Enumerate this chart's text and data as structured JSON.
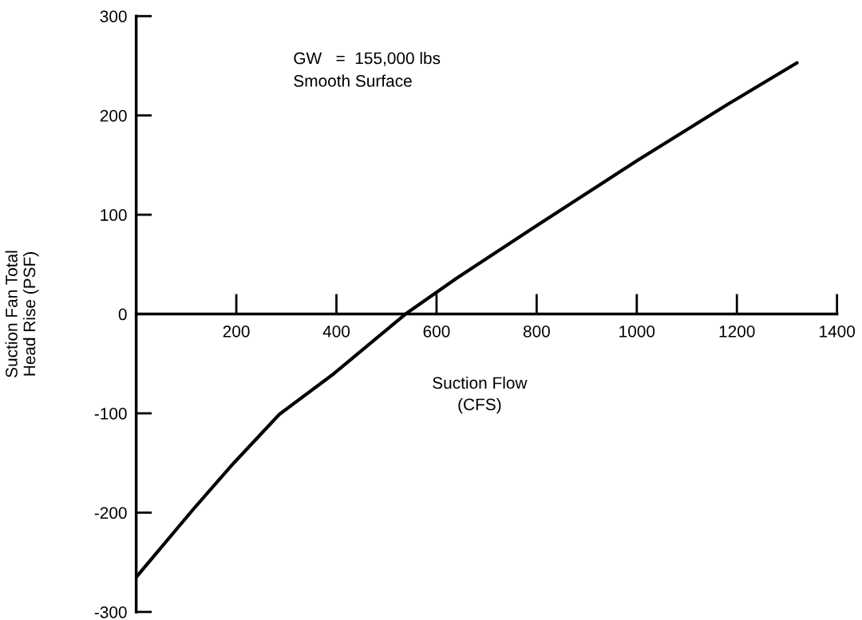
{
  "chart_data": {
    "type": "line",
    "xlabel": "Suction Flow\n(CFS)",
    "ylabel": "Suction Fan Total\nHead Rise (PSF)",
    "annotations": [
      "GW   =  155,000 lbs\nSmooth Surface"
    ],
    "x": [
      0,
      115,
      195,
      286,
      395,
      538,
      640,
      794,
      1002,
      1181,
      1320
    ],
    "series": [
      {
        "color": "#000000",
        "values": [
          -265,
          -196,
          -150,
          -101,
          -60,
          0,
          36,
          87,
          155,
          211,
          253
        ]
      }
    ],
    "xlim": [
      0,
      1400
    ],
    "xticks": [
      200,
      400,
      600,
      800,
      1000,
      1200,
      1400
    ],
    "ylim": [
      -300,
      300
    ],
    "yticks": [
      300,
      200,
      100,
      0,
      -100,
      -200,
      -300
    ],
    "grid": false,
    "line_style": "solid",
    "marker": "none"
  }
}
